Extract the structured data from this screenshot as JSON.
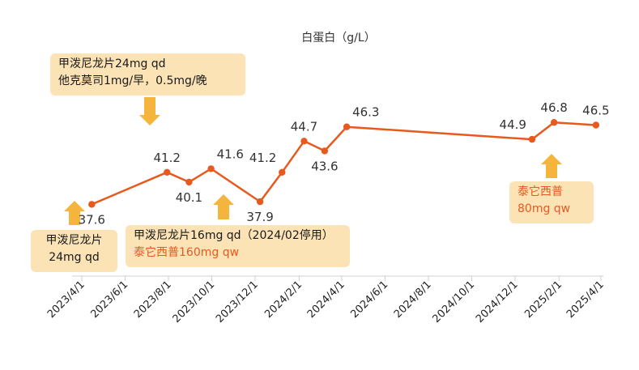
{
  "chart_data": {
    "type": "line",
    "title": "白蛋白（g/L）",
    "xlabel": "",
    "ylabel": "",
    "ylim": [
      30,
      50
    ],
    "x_ticks": [
      "2023/4/1",
      "2023/6/1",
      "2023/8/1",
      "2023/10/1",
      "2023/12/1",
      "2024/2/1",
      "2024/4/1",
      "2024/6/1",
      "2024/8/1",
      "2024/10/1",
      "2024/12/1",
      "2025/2/1",
      "2025/4/1"
    ],
    "series": [
      {
        "name": "白蛋白",
        "color": "#e8591d",
        "points": [
          {
            "date": "2023-04-15",
            "value": 37.6,
            "label": "37.6",
            "label_pos": "below"
          },
          {
            "date": "2023-07-30",
            "value": 41.2,
            "label": "41.2",
            "label_pos": "above"
          },
          {
            "date": "2023-08-30",
            "value": 40.1,
            "label": "40.1",
            "label_pos": "below"
          },
          {
            "date": "2023-09-30",
            "value": 41.6,
            "label": "41.6",
            "label_pos": "above-right"
          },
          {
            "date": "2023-12-08",
            "value": 37.9,
            "label": "37.9",
            "label_pos": "below"
          },
          {
            "date": "2024-01-08",
            "value": 41.2,
            "label": "41.2",
            "label_pos": "above-left"
          },
          {
            "date": "2024-02-08",
            "value": 44.7,
            "label": "44.7",
            "label_pos": "above"
          },
          {
            "date": "2024-03-08",
            "value": 43.6,
            "label": "43.6",
            "label_pos": "below-right"
          },
          {
            "date": "2024-04-08",
            "value": 46.3,
            "label": "46.3",
            "label_pos": "above-right"
          },
          {
            "date": "2024-12-25",
            "value": 44.9,
            "label": "44.9",
            "label_pos": "above-left"
          },
          {
            "date": "2025-01-25",
            "value": 46.8,
            "label": "46.8",
            "label_pos": "above"
          },
          {
            "date": "2025-03-25",
            "value": 46.5,
            "label": "46.5",
            "label_pos": "above"
          }
        ]
      }
    ],
    "annotations": [
      {
        "lines": [
          "甲泼尼龙片24mg qd",
          "他克莫司1mg/早，0.5mg/晚"
        ],
        "highlight_lines": [],
        "arrow": "down",
        "target_date": "2023-07-30"
      },
      {
        "lines": [
          "甲泼尼龙片",
          "24mg qd"
        ],
        "highlight_lines": [],
        "arrow": "up",
        "target_date": "2023-04-15"
      },
      {
        "lines": [
          "甲泼尼龙片16mg qd（2024/02停用）",
          "泰它西普160mg qw"
        ],
        "highlight_lines": [
          1
        ],
        "arrow": "up",
        "target_date": "2023-10-30"
      },
      {
        "lines": [
          "泰它西普",
          "80mg qw"
        ],
        "highlight_lines": [
          0,
          1
        ],
        "arrow": "up",
        "target_date": "2025-01-25"
      }
    ],
    "arrow_color": "#f5b53c",
    "box_color": "#fbe3b6",
    "highlight_color": "#e8591d",
    "grid": false
  }
}
